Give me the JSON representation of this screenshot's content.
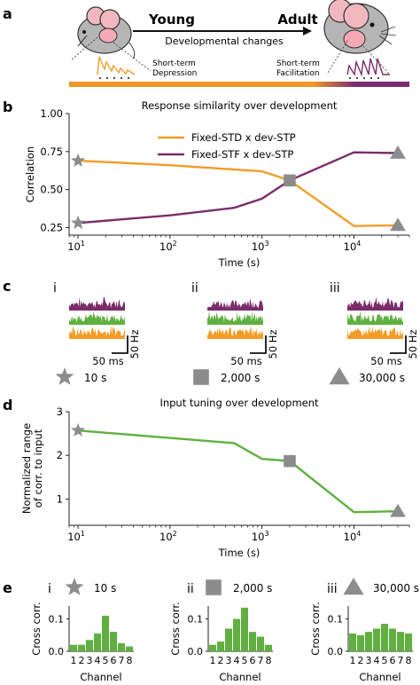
{
  "colors": {
    "std": "#f39c27",
    "stf": "#7b2d6a",
    "green": "#5fb040",
    "marker": "#8c8c8c",
    "bar_start": "#f0962a",
    "bar_end": "#7b2a6e"
  },
  "panel_a": {
    "label": "a",
    "young": "Young",
    "adult": "Adult",
    "arrow_text": "Developmental changes",
    "left_caption": [
      "Short-term",
      "Depression"
    ],
    "right_caption": [
      "Short-term",
      "Facilitation"
    ]
  },
  "panel_b": {
    "label": "b",
    "chart_data": {
      "type": "line",
      "title": "Response similarity over development",
      "xlabel": "Time (s)",
      "ylabel": "Correlation",
      "xscale": "log",
      "xlim": [
        8,
        40000
      ],
      "ylim": [
        0.2,
        1.0
      ],
      "yticks": [
        "0.25",
        "0.50",
        "0.75",
        "1.00"
      ],
      "xticks": [
        {
          "base": "10",
          "exp": "1"
        },
        {
          "base": "10",
          "exp": "2"
        },
        {
          "base": "10",
          "exp": "3"
        },
        {
          "base": "10",
          "exp": "4"
        }
      ],
      "legend_position": "top-right",
      "series": [
        {
          "name": "Fixed-STD x dev-STP",
          "color": "#f39c27",
          "x": [
            10,
            100,
            1000,
            2000,
            10000,
            30000
          ],
          "y": [
            0.69,
            0.66,
            0.62,
            0.56,
            0.26,
            0.265
          ]
        },
        {
          "name": "Fixed-STF x dev-STP",
          "color": "#7b2d6a",
          "x": [
            10,
            100,
            500,
            1000,
            2000,
            10000,
            30000
          ],
          "y": [
            0.28,
            0.33,
            0.38,
            0.44,
            0.56,
            0.745,
            0.74
          ]
        }
      ],
      "markers": [
        {
          "shape": "star",
          "x": 10,
          "y": 0.69
        },
        {
          "shape": "star",
          "x": 10,
          "y": 0.28
        },
        {
          "shape": "square",
          "x": 2000,
          "y": 0.56
        },
        {
          "shape": "triangle",
          "x": 30000,
          "y": 0.74
        },
        {
          "shape": "triangle",
          "x": 30000,
          "y": 0.265
        }
      ]
    }
  },
  "panel_c": {
    "label": "c",
    "groups": [
      {
        "roman": "i",
        "time": "10 s",
        "shape": "star"
      },
      {
        "roman": "ii",
        "time": "2,000 s",
        "shape": "square"
      },
      {
        "roman": "iii",
        "time": "30,000 s",
        "shape": "triangle"
      }
    ],
    "scale_x": "50 ms",
    "scale_y": "50 Hz"
  },
  "panel_d": {
    "label": "d",
    "chart_data": {
      "type": "line",
      "title": "Input tuning over development",
      "xlabel": "Time (s)",
      "ylabel": [
        "Normalized range",
        "of corr. to input"
      ],
      "xscale": "log",
      "xlim": [
        8,
        40000
      ],
      "ylim": [
        0.4,
        3.0
      ],
      "yticks": [
        "1",
        "2",
        "3"
      ],
      "xticks": [
        {
          "base": "10",
          "exp": "1"
        },
        {
          "base": "10",
          "exp": "2"
        },
        {
          "base": "10",
          "exp": "3"
        },
        {
          "base": "10",
          "exp": "4"
        }
      ],
      "series": [
        {
          "color": "#5fb040",
          "x": [
            10,
            500,
            1000,
            2000,
            10000,
            30000
          ],
          "y": [
            2.57,
            2.28,
            1.92,
            1.87,
            0.7,
            0.72
          ]
        }
      ],
      "markers": [
        {
          "shape": "star",
          "x": 10,
          "y": 2.57
        },
        {
          "shape": "square",
          "x": 2000,
          "y": 1.87
        },
        {
          "shape": "triangle",
          "x": 30000,
          "y": 0.72
        }
      ]
    }
  },
  "panel_e": {
    "label": "e",
    "chart_data": [
      {
        "type": "bar",
        "roman": "i",
        "time": "10 s",
        "shape": "star",
        "categories": [
          "1",
          "2",
          "3",
          "4",
          "5",
          "6",
          "7",
          "8"
        ],
        "values": [
          0.02,
          0.02,
          0.035,
          0.055,
          0.11,
          0.06,
          0.025,
          0.015
        ],
        "ylabel": "Cross corr.",
        "xlabel": "Channel",
        "ylim": [
          0,
          0.14
        ],
        "yticks": [
          "0.0",
          "0.1"
        ]
      },
      {
        "type": "bar",
        "roman": "ii",
        "time": "2,000 s",
        "shape": "square",
        "categories": [
          "1",
          "2",
          "3",
          "4",
          "5",
          "6",
          "7",
          "8"
        ],
        "values": [
          0.02,
          0.03,
          0.07,
          0.1,
          0.135,
          0.06,
          0.045,
          0.02
        ],
        "ylabel": "Cross corr.",
        "xlabel": "Channel",
        "ylim": [
          0,
          0.14
        ],
        "yticks": [
          "0.0",
          "0.1"
        ]
      },
      {
        "type": "bar",
        "roman": "iii",
        "time": "30,000 s",
        "shape": "triangle",
        "categories": [
          "1",
          "2",
          "3",
          "4",
          "5",
          "6",
          "7",
          "8"
        ],
        "values": [
          0.055,
          0.05,
          0.06,
          0.07,
          0.085,
          0.07,
          0.06,
          0.055
        ],
        "ylabel": "Cross corr.",
        "xlabel": "Channel",
        "ylim": [
          0,
          0.14
        ],
        "yticks": [
          "0.0",
          "0.1"
        ]
      }
    ]
  }
}
